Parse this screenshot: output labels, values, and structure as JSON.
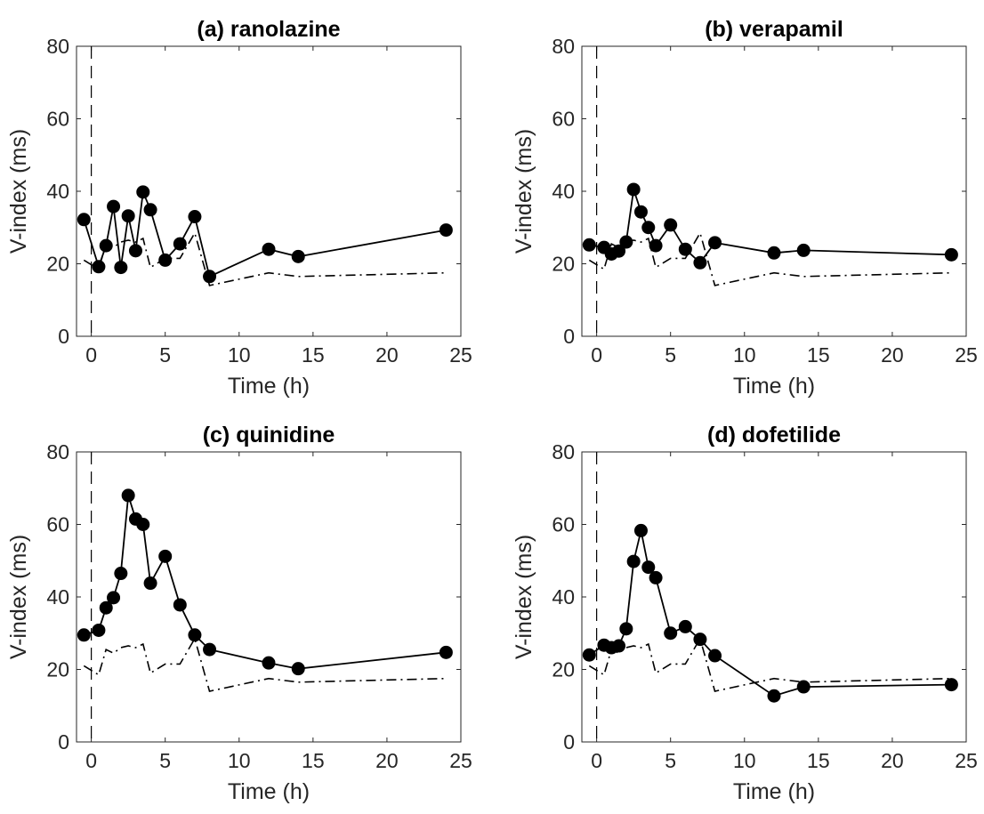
{
  "chart_data": [
    {
      "type": "line",
      "title": "(a) ranolazine",
      "xlabel": "Time (h)",
      "ylabel": "V-index (ms)",
      "xlim": [
        -1,
        25
      ],
      "ylim": [
        0,
        80
      ],
      "xticks": [
        "0",
        "5",
        "10",
        "15",
        "20",
        "25"
      ],
      "yticks": [
        "0",
        "20",
        "40",
        "60",
        "80"
      ],
      "grid": false,
      "legend": "none",
      "dose_time_marker": 0,
      "series": [
        {
          "style": "solid-markers",
          "x": [
            -0.5,
            0.5,
            1,
            1.5,
            2,
            2.5,
            3,
            3.5,
            4,
            5,
            6,
            7,
            8,
            12,
            14,
            24
          ],
          "y": [
            32.2,
            19.2,
            25.0,
            35.8,
            19.0,
            33.2,
            23.6,
            39.8,
            34.9,
            21.0,
            25.5,
            33.0,
            16.5,
            24.0,
            22.0,
            29.3
          ]
        },
        {
          "style": "dash-dot",
          "x": [
            -0.5,
            0.5,
            1,
            1.5,
            2,
            2.5,
            3,
            3.5,
            4,
            5,
            6,
            7,
            8,
            12,
            14,
            24
          ],
          "y": [
            21.0,
            18.5,
            25.5,
            24.5,
            26.0,
            26.5,
            26.0,
            27.0,
            19.0,
            21.5,
            21.5,
            28.5,
            14.0,
            17.5,
            16.5,
            17.5
          ]
        }
      ]
    },
    {
      "type": "line",
      "title": "(b) verapamil",
      "xlabel": "Time (h)",
      "ylabel": "V-index (ms)",
      "xlim": [
        -1,
        25
      ],
      "ylim": [
        0,
        80
      ],
      "xticks": [
        "0",
        "5",
        "10",
        "15",
        "20",
        "25"
      ],
      "yticks": [
        "0",
        "20",
        "40",
        "60",
        "80"
      ],
      "grid": false,
      "legend": "none",
      "dose_time_marker": 0,
      "series": [
        {
          "style": "solid-markers",
          "x": [
            -0.5,
            0.5,
            1,
            1.5,
            2,
            2.5,
            3,
            3.5,
            4,
            5,
            6,
            7,
            8,
            12,
            14,
            24
          ],
          "y": [
            25.2,
            24.5,
            22.7,
            23.5,
            26.0,
            40.5,
            34.3,
            30.0,
            25.0,
            30.7,
            24.0,
            20.3,
            25.8,
            23.0,
            23.7,
            22.5
          ]
        },
        {
          "style": "dash-dot",
          "x": [
            -0.5,
            0.5,
            1,
            1.5,
            2,
            2.5,
            3,
            3.5,
            4,
            5,
            6,
            7,
            8,
            12,
            14,
            24
          ],
          "y": [
            21.0,
            18.5,
            25.5,
            24.5,
            26.0,
            26.5,
            26.0,
            27.0,
            19.0,
            21.5,
            21.5,
            28.5,
            14.0,
            17.5,
            16.5,
            17.5
          ]
        }
      ]
    },
    {
      "type": "line",
      "title": "(c) quinidine",
      "xlabel": "Time (h)",
      "ylabel": "V-index (ms)",
      "xlim": [
        -1,
        25
      ],
      "ylim": [
        0,
        80
      ],
      "xticks": [
        "0",
        "5",
        "10",
        "15",
        "20",
        "25"
      ],
      "yticks": [
        "0",
        "20",
        "40",
        "60",
        "80"
      ],
      "grid": false,
      "legend": "none",
      "dose_time_marker": 0,
      "series": [
        {
          "style": "solid-markers",
          "x": [
            -0.5,
            0.5,
            1,
            1.5,
            2,
            2.5,
            3,
            3.5,
            4,
            5,
            6,
            7,
            8,
            12,
            14,
            24
          ],
          "y": [
            29.5,
            30.8,
            37.0,
            39.8,
            46.5,
            68.0,
            61.5,
            60.0,
            43.8,
            51.2,
            37.8,
            29.5,
            25.5,
            21.8,
            20.2,
            24.7
          ]
        },
        {
          "style": "dash-dot",
          "x": [
            -0.5,
            0.5,
            1,
            1.5,
            2,
            2.5,
            3,
            3.5,
            4,
            5,
            6,
            7,
            8,
            12,
            14,
            24
          ],
          "y": [
            21.0,
            18.5,
            25.5,
            24.5,
            26.0,
            26.5,
            26.0,
            27.0,
            19.0,
            21.5,
            21.5,
            28.5,
            14.0,
            17.5,
            16.5,
            17.5
          ]
        }
      ]
    },
    {
      "type": "line",
      "title": "(d) dofetilide",
      "xlabel": "Time (h)",
      "ylabel": "V-index (ms)",
      "xlim": [
        -1,
        25
      ],
      "ylim": [
        0,
        80
      ],
      "xticks": [
        "0",
        "5",
        "10",
        "15",
        "20",
        "25"
      ],
      "yticks": [
        "0",
        "20",
        "40",
        "60",
        "80"
      ],
      "grid": false,
      "legend": "none",
      "dose_time_marker": 0,
      "series": [
        {
          "style": "solid-markers",
          "x": [
            -0.5,
            0.5,
            1,
            1.5,
            2,
            2.5,
            3,
            3.5,
            4,
            5,
            6,
            7,
            8,
            12,
            14,
            24
          ],
          "y": [
            24.0,
            26.7,
            26.0,
            26.5,
            31.2,
            49.8,
            58.3,
            48.2,
            45.3,
            30.0,
            31.8,
            28.3,
            23.8,
            12.7,
            15.2,
            15.8
          ]
        },
        {
          "style": "dash-dot",
          "x": [
            -0.5,
            0.5,
            1,
            1.5,
            2,
            2.5,
            3,
            3.5,
            4,
            5,
            6,
            7,
            8,
            12,
            14,
            24
          ],
          "y": [
            21.0,
            18.5,
            25.5,
            24.5,
            26.0,
            26.5,
            26.0,
            27.0,
            19.0,
            21.5,
            21.5,
            28.5,
            14.0,
            17.5,
            16.5,
            17.5
          ]
        }
      ]
    }
  ]
}
